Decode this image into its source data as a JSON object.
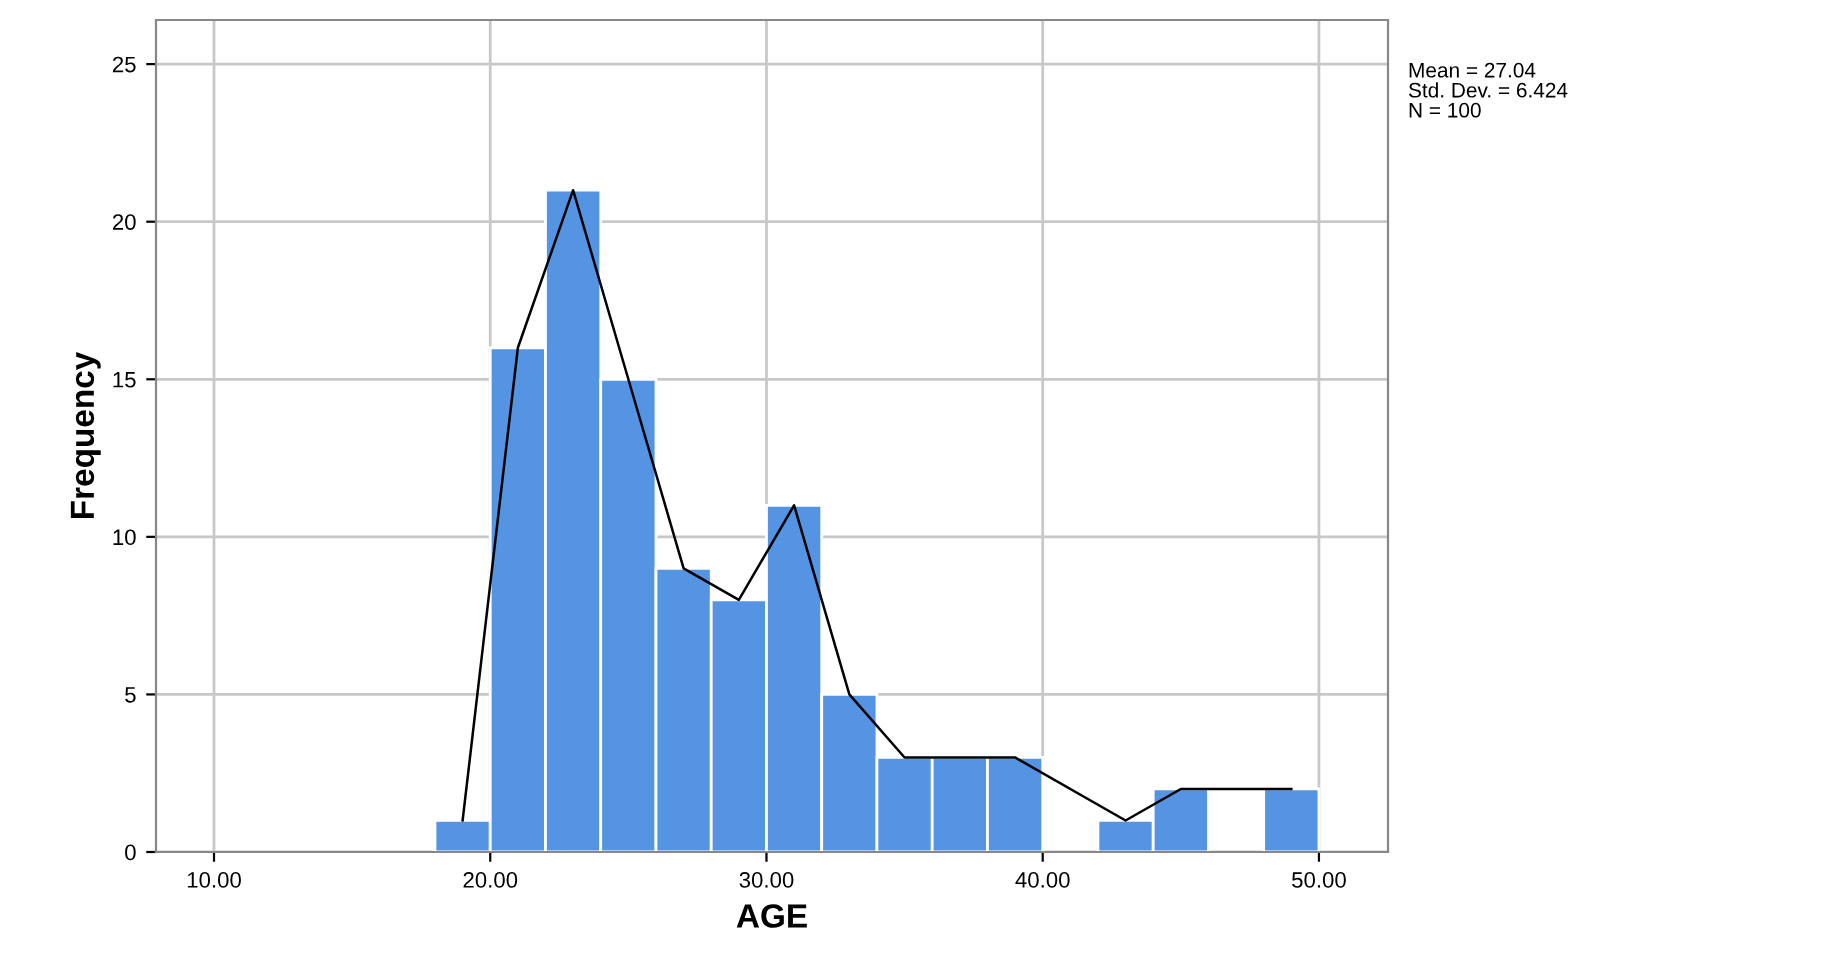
{
  "chart_data": {
    "type": "histogram",
    "xlabel": "AGE",
    "ylabel": "Frequency",
    "bins": [
      18,
      20,
      22,
      24,
      26,
      28,
      30,
      32,
      34,
      36,
      38,
      40,
      42,
      44,
      46,
      48,
      50
    ],
    "values": [
      1,
      16,
      21,
      15,
      9,
      8,
      11,
      5,
      3,
      3,
      3,
      0,
      1,
      2,
      0,
      2
    ],
    "color": "#5593e3",
    "series": [
      {
        "type": "line",
        "color": "#000000",
        "x": [
          19,
          21,
          23,
          25,
          27,
          29,
          31,
          33,
          35,
          37,
          39,
          43,
          45,
          49
        ],
        "values": [
          1,
          16,
          21,
          15,
          9,
          8,
          11,
          5,
          3,
          3,
          3,
          1,
          2,
          2
        ]
      }
    ],
    "xlim": [
      7.9,
      52.5
    ],
    "ylim": [
      0,
      26.4
    ],
    "xticks": [
      {
        "value": 10,
        "label": "10.00"
      },
      {
        "value": 20,
        "label": "20.00"
      },
      {
        "value": 30,
        "label": "30.00"
      },
      {
        "value": 40,
        "label": "40.00"
      },
      {
        "value": 50,
        "label": "50.00"
      }
    ],
    "yticks": [
      0,
      5,
      10,
      15,
      20,
      25
    ],
    "grid": true,
    "annotations": [
      "Mean = 27.04",
      "Std. Dev. = 6.424",
      "N = 100"
    ]
  }
}
